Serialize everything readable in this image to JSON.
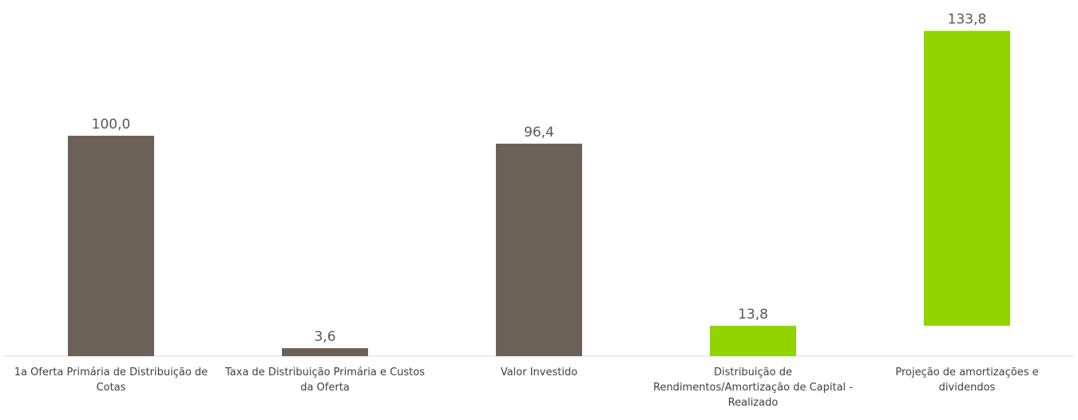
{
  "chart_data": {
    "type": "bar",
    "categories": [
      "1a Oferta Primária de Distribuição de Cotas",
      "Taxa de Distribuição Primária e Custos da Oferta",
      "Valor Investido",
      "Distribuição de Rendimentos/Amortização de Capital - Realizado",
      "Projeção de amortizações e dividendos"
    ],
    "series": [
      {
        "color": "#6b6157",
        "values": [
          100,
          3.6,
          96.4,
          null,
          null
        ],
        "value_labels": [
          "100,0",
          "3,6",
          "96,4",
          null,
          null
        ]
      },
      {
        "color": "#92d400",
        "cumulative": true,
        "values": [
          null,
          null,
          null,
          13.8,
          133.8
        ],
        "value_labels": [
          null,
          null,
          null,
          "13,8",
          "133,8"
        ]
      }
    ],
    "ylim": [
      0,
      160
    ]
  }
}
